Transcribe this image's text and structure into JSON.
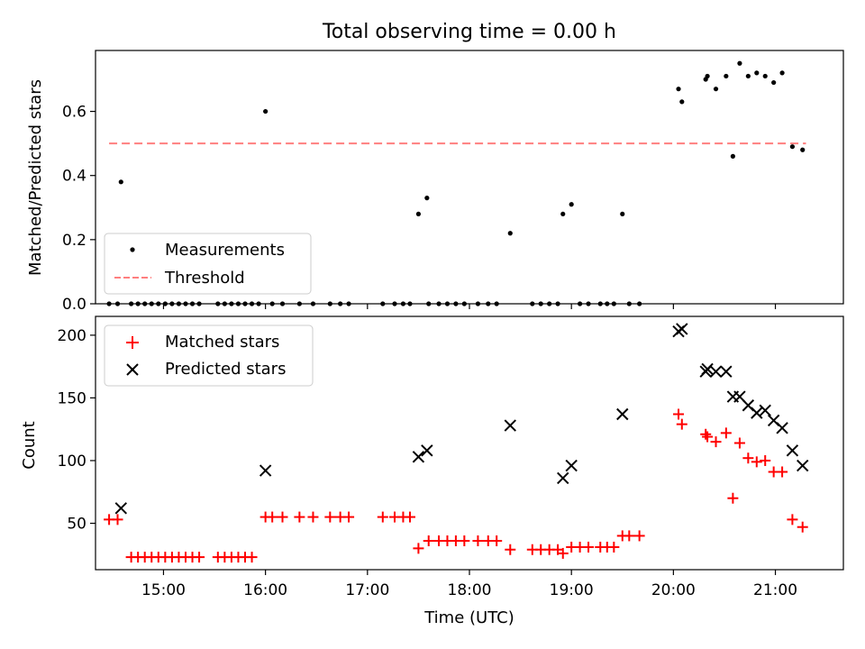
{
  "title": "Total observing time = 0.00 h",
  "xlabel": "Time (UTC)",
  "colors": {
    "measurement": "#000000",
    "threshold": "#ff7f7f",
    "matched": "#ff0000",
    "predicted": "#000000"
  },
  "chart_data": [
    {
      "type": "scatter",
      "ylabel": "Matched/Predicted stars",
      "xlim": [
        "14:20",
        "21:40"
      ],
      "ylim": [
        0,
        0.79
      ],
      "yticks": [
        0.0,
        0.2,
        0.4,
        0.6
      ],
      "ytick_labels": [
        "0.0",
        "0.2",
        "0.4",
        "0.6"
      ],
      "legend": {
        "position": "lower left",
        "entries": [
          "Measurements",
          "Threshold"
        ]
      },
      "threshold": {
        "name": "Threshold",
        "y": 0.5,
        "x_range": [
          "14:28",
          "21:18"
        ],
        "style": "dashed"
      },
      "series": [
        {
          "name": "Measurements",
          "marker": "dot",
          "points": [
            [
              "14:28",
              0
            ],
            [
              "14:33",
              0
            ],
            [
              "14:35",
              0.38
            ],
            [
              "14:41",
              0
            ],
            [
              "14:45",
              0
            ],
            [
              "14:49",
              0
            ],
            [
              "14:53",
              0
            ],
            [
              "14:57",
              0
            ],
            [
              "15:01",
              0
            ],
            [
              "15:05",
              0
            ],
            [
              "15:09",
              0
            ],
            [
              "15:13",
              0
            ],
            [
              "15:17",
              0
            ],
            [
              "15:21",
              0
            ],
            [
              "15:32",
              0
            ],
            [
              "15:36",
              0
            ],
            [
              "15:40",
              0
            ],
            [
              "15:44",
              0
            ],
            [
              "15:48",
              0
            ],
            [
              "15:52",
              0
            ],
            [
              "15:56",
              0
            ],
            [
              "16:00",
              0.6
            ],
            [
              "16:04",
              0
            ],
            [
              "16:10",
              0
            ],
            [
              "16:20",
              0
            ],
            [
              "16:28",
              0
            ],
            [
              "16:38",
              0
            ],
            [
              "16:44",
              0
            ],
            [
              "16:49",
              0
            ],
            [
              "17:09",
              0
            ],
            [
              "17:16",
              0
            ],
            [
              "17:21",
              0
            ],
            [
              "17:25",
              0
            ],
            [
              "17:30",
              0.28
            ],
            [
              "17:35",
              0.33
            ],
            [
              "17:36",
              0
            ],
            [
              "17:42",
              0
            ],
            [
              "17:47",
              0
            ],
            [
              "17:52",
              0
            ],
            [
              "17:57",
              0
            ],
            [
              "18:05",
              0
            ],
            [
              "18:11",
              0
            ],
            [
              "18:16",
              0
            ],
            [
              "18:24",
              0.22
            ],
            [
              "18:37",
              0
            ],
            [
              "18:42",
              0
            ],
            [
              "18:47",
              0
            ],
            [
              "18:52",
              0
            ],
            [
              "18:55",
              0.28
            ],
            [
              "19:00",
              0.31
            ],
            [
              "19:05",
              0
            ],
            [
              "19:10",
              0
            ],
            [
              "19:17",
              0
            ],
            [
              "19:21",
              0
            ],
            [
              "19:25",
              0
            ],
            [
              "19:30",
              0.28
            ],
            [
              "19:34",
              0
            ],
            [
              "19:40",
              0
            ],
            [
              "20:03",
              0.67
            ],
            [
              "20:05",
              0.63
            ],
            [
              "20:19",
              0.7
            ],
            [
              "20:20",
              0.71
            ],
            [
              "20:25",
              0.67
            ],
            [
              "20:31",
              0.71
            ],
            [
              "20:35",
              0.46
            ],
            [
              "20:39",
              0.75
            ],
            [
              "20:44",
              0.71
            ],
            [
              "20:49",
              0.72
            ],
            [
              "20:54",
              0.71
            ],
            [
              "20:59",
              0.69
            ],
            [
              "21:04",
              0.72
            ],
            [
              "21:10",
              0.49
            ],
            [
              "21:16",
              0.48
            ]
          ]
        }
      ]
    },
    {
      "type": "scatter",
      "ylabel": "Count",
      "xlim": [
        "14:20",
        "21:40"
      ],
      "ylim": [
        13,
        215
      ],
      "yticks": [
        50,
        100,
        150,
        200
      ],
      "ytick_labels": [
        "50",
        "100",
        "150",
        "200"
      ],
      "xticks": [
        "15:00",
        "16:00",
        "17:00",
        "18:00",
        "19:00",
        "20:00",
        "21:00"
      ],
      "legend": {
        "position": "upper left",
        "entries": [
          "Matched stars",
          "Predicted stars"
        ]
      },
      "series": [
        {
          "name": "Matched stars",
          "marker": "plus",
          "points": [
            [
              "14:28",
              53
            ],
            [
              "14:33",
              53
            ],
            [
              "14:41",
              23
            ],
            [
              "14:45",
              23
            ],
            [
              "14:49",
              23
            ],
            [
              "14:53",
              23
            ],
            [
              "14:57",
              23
            ],
            [
              "15:01",
              23
            ],
            [
              "15:05",
              23
            ],
            [
              "15:09",
              23
            ],
            [
              "15:13",
              23
            ],
            [
              "15:17",
              23
            ],
            [
              "15:21",
              23
            ],
            [
              "15:32",
              23
            ],
            [
              "15:36",
              23
            ],
            [
              "15:40",
              23
            ],
            [
              "15:44",
              23
            ],
            [
              "15:48",
              23
            ],
            [
              "15:52",
              23
            ],
            [
              "16:00",
              55
            ],
            [
              "16:04",
              55
            ],
            [
              "16:10",
              55
            ],
            [
              "16:20",
              55
            ],
            [
              "16:28",
              55
            ],
            [
              "16:38",
              55
            ],
            [
              "16:44",
              55
            ],
            [
              "16:49",
              55
            ],
            [
              "17:09",
              55
            ],
            [
              "17:16",
              55
            ],
            [
              "17:21",
              55
            ],
            [
              "17:25",
              55
            ],
            [
              "17:30",
              30
            ],
            [
              "17:36",
              36
            ],
            [
              "17:42",
              36
            ],
            [
              "17:47",
              36
            ],
            [
              "17:52",
              36
            ],
            [
              "17:57",
              36
            ],
            [
              "18:05",
              36
            ],
            [
              "18:11",
              36
            ],
            [
              "18:16",
              36
            ],
            [
              "18:24",
              29
            ],
            [
              "18:37",
              29
            ],
            [
              "18:42",
              29
            ],
            [
              "18:47",
              29
            ],
            [
              "18:52",
              29
            ],
            [
              "18:55",
              26
            ],
            [
              "19:00",
              31
            ],
            [
              "19:05",
              31
            ],
            [
              "19:10",
              31
            ],
            [
              "19:17",
              31
            ],
            [
              "19:21",
              31
            ],
            [
              "19:25",
              31
            ],
            [
              "19:30",
              40
            ],
            [
              "19:34",
              40
            ],
            [
              "19:40",
              40
            ],
            [
              "20:03",
              137
            ],
            [
              "20:05",
              129
            ],
            [
              "20:19",
              121
            ],
            [
              "20:20",
              119
            ],
            [
              "20:25",
              115
            ],
            [
              "20:31",
              122
            ],
            [
              "20:35",
              70
            ],
            [
              "20:39",
              114
            ],
            [
              "20:44",
              102
            ],
            [
              "20:49",
              99
            ],
            [
              "20:54",
              100
            ],
            [
              "20:59",
              91
            ],
            [
              "21:04",
              91
            ],
            [
              "21:10",
              53
            ],
            [
              "21:16",
              47
            ]
          ]
        },
        {
          "name": "Predicted stars",
          "marker": "x",
          "points": [
            [
              "14:35",
              62
            ],
            [
              "16:00",
              92
            ],
            [
              "17:30",
              103
            ],
            [
              "17:35",
              108
            ],
            [
              "18:24",
              128
            ],
            [
              "18:55",
              86
            ],
            [
              "19:00",
              96
            ],
            [
              "19:30",
              137
            ],
            [
              "20:03",
              203
            ],
            [
              "20:05",
              205
            ],
            [
              "20:19",
              171
            ],
            [
              "20:20",
              173
            ],
            [
              "20:25",
              171
            ],
            [
              "20:31",
              171
            ],
            [
              "20:35",
              151
            ],
            [
              "20:39",
              151
            ],
            [
              "20:44",
              144
            ],
            [
              "20:49",
              138
            ],
            [
              "20:54",
              140
            ],
            [
              "20:59",
              132
            ],
            [
              "21:04",
              126
            ],
            [
              "21:10",
              108
            ],
            [
              "21:16",
              96
            ]
          ]
        }
      ]
    }
  ]
}
